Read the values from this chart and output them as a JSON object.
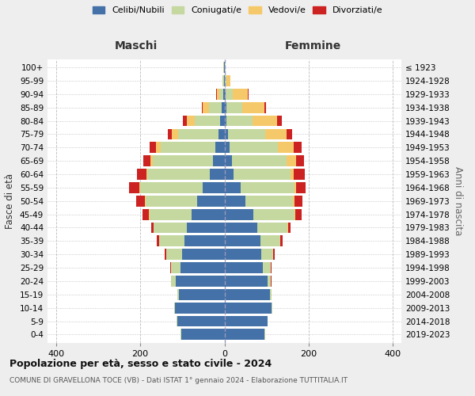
{
  "age_groups": [
    "100+",
    "95-99",
    "90-94",
    "85-89",
    "80-84",
    "75-79",
    "70-74",
    "65-69",
    "60-64",
    "55-59",
    "50-54",
    "45-49",
    "40-44",
    "35-39",
    "30-34",
    "25-29",
    "20-24",
    "15-19",
    "10-14",
    "5-9",
    "0-4"
  ],
  "birth_years": [
    "≤ 1923",
    "1924-1928",
    "1929-1933",
    "1934-1938",
    "1939-1943",
    "1944-1948",
    "1949-1953",
    "1954-1958",
    "1959-1963",
    "1964-1968",
    "1969-1973",
    "1974-1978",
    "1979-1983",
    "1984-1988",
    "1989-1993",
    "1994-1998",
    "1999-2003",
    "2004-2008",
    "2009-2013",
    "2014-2018",
    "2019-2023"
  ],
  "male_celibi": [
    1,
    1,
    3,
    6,
    10,
    15,
    22,
    28,
    35,
    52,
    65,
    78,
    90,
    95,
    100,
    105,
    115,
    108,
    118,
    112,
    103
  ],
  "male_coniugati": [
    1,
    3,
    10,
    30,
    60,
    95,
    130,
    142,
    148,
    148,
    122,
    100,
    78,
    60,
    38,
    22,
    12,
    4,
    2,
    1,
    1
  ],
  "male_vedovi": [
    0,
    1,
    5,
    15,
    20,
    15,
    10,
    5,
    3,
    2,
    1,
    1,
    0,
    0,
    0,
    0,
    0,
    0,
    0,
    0,
    0
  ],
  "male_divorziati": [
    0,
    0,
    1,
    2,
    8,
    10,
    15,
    18,
    22,
    25,
    22,
    15,
    5,
    5,
    3,
    2,
    0,
    0,
    0,
    0,
    0
  ],
  "female_nubili": [
    1,
    1,
    2,
    4,
    5,
    8,
    12,
    18,
    22,
    38,
    50,
    68,
    78,
    85,
    88,
    92,
    102,
    108,
    112,
    102,
    95
  ],
  "female_coniugate": [
    1,
    4,
    18,
    38,
    62,
    88,
    115,
    130,
    135,
    128,
    112,
    98,
    72,
    48,
    28,
    18,
    8,
    4,
    2,
    1,
    1
  ],
  "female_vedove": [
    1,
    10,
    35,
    52,
    58,
    52,
    38,
    22,
    8,
    5,
    4,
    2,
    1,
    0,
    0,
    0,
    0,
    0,
    0,
    0,
    0
  ],
  "female_divorziate": [
    0,
    0,
    2,
    5,
    12,
    12,
    18,
    18,
    25,
    22,
    20,
    15,
    5,
    5,
    3,
    2,
    1,
    0,
    0,
    0,
    0
  ],
  "color_celibi": "#4472a8",
  "color_coniugati": "#c5d8a0",
  "color_vedovi": "#f5c96a",
  "color_divorziati": "#cc2222",
  "xlim": 420,
  "title": "Popolazione per età, sesso e stato civile - 2024",
  "subtitle": "COMUNE DI GRAVELLONA TOCE (VB) - Dati ISTAT 1° gennaio 2024 - Elaborazione TUTTITALIA.IT",
  "ylabel_left": "Fasce di età",
  "ylabel_right": "Anni di nascita",
  "label_maschi": "Maschi",
  "label_femmine": "Femmine",
  "bg_color": "#eeeeee",
  "plot_bg_color": "#ffffff"
}
